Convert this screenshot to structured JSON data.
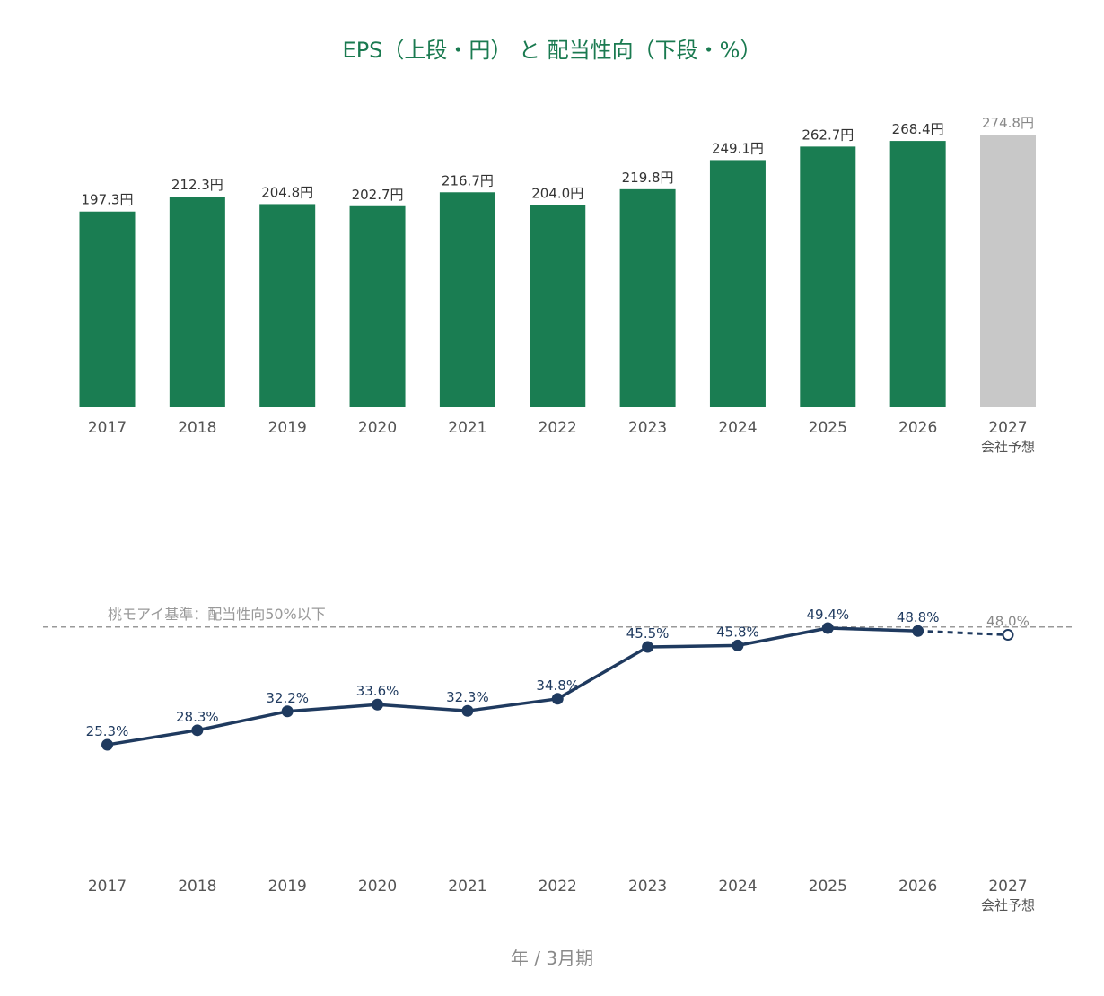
{
  "title": "EPS（上段・円） と 配当性向（下段・%）",
  "xlabel": "年 / 3月期",
  "colors": {
    "title": "#1a7a50",
    "bar": "#1a7d52",
    "bar_forecast": "#c8c8c8",
    "line": "#1f3a5f",
    "reference": "#999999"
  },
  "chart_data": [
    {
      "type": "bar",
      "categories": [
        "2017",
        "2018",
        "2019",
        "2020",
        "2021",
        "2022",
        "2023",
        "2024",
        "2025",
        "2026",
        "2027"
      ],
      "category_sublabels": [
        "",
        "",
        "",
        "",
        "",
        "",
        "",
        "",
        "",
        "",
        "会社予想"
      ],
      "values": [
        197.3,
        212.3,
        204.8,
        202.7,
        216.7,
        204.0,
        219.8,
        249.1,
        262.7,
        268.4,
        274.8
      ],
      "data_labels": [
        "197.3円",
        "212.3円",
        "204.8円",
        "202.7円",
        "216.7円",
        "204.0円",
        "219.8円",
        "249.1円",
        "262.7円",
        "268.4円",
        "274.8円"
      ],
      "forecast_index": 10,
      "unit": "円",
      "ylim": [
        0,
        290
      ]
    },
    {
      "type": "line",
      "categories": [
        "2017",
        "2018",
        "2019",
        "2020",
        "2021",
        "2022",
        "2023",
        "2024",
        "2025",
        "2026",
        "2027"
      ],
      "category_sublabels": [
        "",
        "",
        "",
        "",
        "",
        "",
        "",
        "",
        "",
        "",
        "会社予想"
      ],
      "values": [
        25.3,
        28.3,
        32.2,
        33.6,
        32.3,
        34.8,
        45.5,
        45.8,
        49.4,
        48.8,
        48.0
      ],
      "data_labels": [
        "25.3%",
        "28.3%",
        "32.2%",
        "33.6%",
        "32.3%",
        "34.8%",
        "45.5%",
        "45.8%",
        "49.4%",
        "48.8%",
        "48.0%"
      ],
      "forecast_index": 10,
      "unit": "%",
      "reference_line": {
        "value": 50,
        "label": "桃モアイ基準：配当性向50%以下"
      },
      "ylim": [
        0,
        55
      ]
    }
  ]
}
